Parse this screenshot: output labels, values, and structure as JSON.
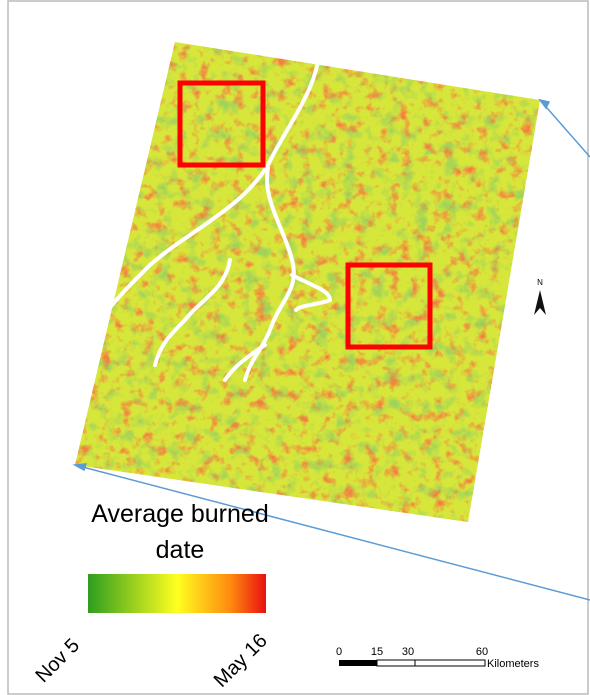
{
  "legend": {
    "title_lines": [
      "Average burned",
      "date"
    ],
    "start_label": "Nov 5",
    "end_label": "May 16"
  },
  "scale_bar": {
    "ticks": [
      "0",
      "15",
      "30",
      "60"
    ],
    "unit": "Kilometers"
  },
  "north_arrow": {
    "label": "N"
  }
}
